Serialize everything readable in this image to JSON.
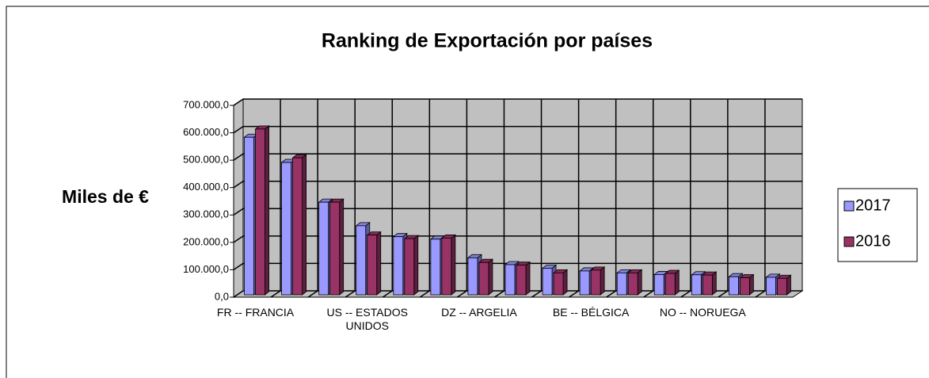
{
  "chart_data": {
    "type": "bar3d",
    "title": "Ranking de Exportación por países",
    "y_label": "Miles de €",
    "categories": [
      "FR -- FRANCIA",
      null,
      null,
      "US -- ESTADOS UNIDOS",
      null,
      null,
      "DZ -- ARGELIA",
      null,
      null,
      "BE -- BÉLGICA",
      null,
      null,
      "NO -- NORUEGA",
      null,
      null
    ],
    "series": [
      {
        "name": "2017",
        "color": "#9999ff",
        "values": [
          575000,
          483000,
          338000,
          252000,
          212000,
          203000,
          135000,
          110000,
          97000,
          87000,
          80000,
          74000,
          73000,
          66000,
          64000
        ]
      },
      {
        "name": "2016",
        "color": "#993366",
        "values": [
          605000,
          500000,
          338000,
          218000,
          205000,
          207000,
          118000,
          108000,
          80000,
          90000,
          80000,
          78000,
          72000,
          62000,
          60000
        ]
      }
    ],
    "ylim": [
      0,
      700000
    ],
    "yticks": [
      {
        "value": 0,
        "label": "0,0"
      },
      {
        "value": 100000,
        "label": "100.000,0"
      },
      {
        "value": 200000,
        "label": "200.000,0"
      },
      {
        "value": 300000,
        "label": "300.000,0"
      },
      {
        "value": 400000,
        "label": "400.000,0"
      },
      {
        "value": 500000,
        "label": "500.000,0"
      },
      {
        "value": 600000,
        "label": "600.000,0"
      },
      {
        "value": 700000,
        "label": "700.000,0"
      }
    ],
    "grid": true,
    "legend": "right"
  }
}
